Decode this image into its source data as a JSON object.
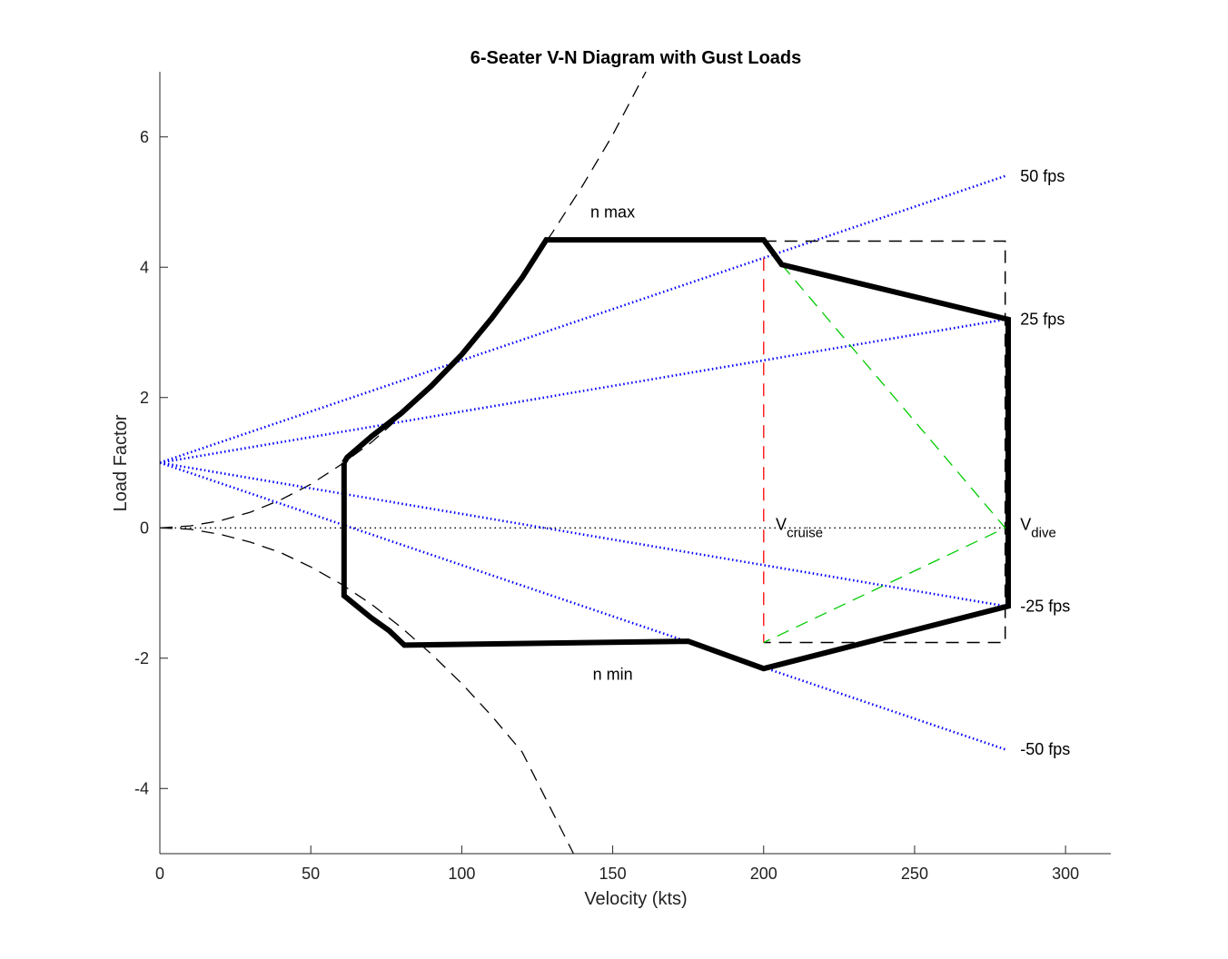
{
  "chart_data": {
    "type": "line",
    "title": "6-Seater V-N Diagram with Gust Loads",
    "xlabel": "Velocity (kts)",
    "ylabel": "Load Factor",
    "xlim": [
      0,
      315
    ],
    "ylim": [
      -5,
      7
    ],
    "xticks": [
      0,
      50,
      100,
      150,
      200,
      250,
      300
    ],
    "yticks": [
      -4,
      -2,
      0,
      2,
      4,
      6
    ],
    "grid": false,
    "series": [
      {
        "kind": "envelope",
        "color": "#000000",
        "x": [
          61,
          62,
          70,
          80,
          90,
          100,
          110,
          120,
          128,
          200,
          206,
          281,
          281,
          281,
          200,
          175,
          81,
          76,
          70,
          61,
          61
        ],
        "y": [
          1.0,
          1.08,
          1.4,
          1.76,
          2.18,
          2.66,
          3.22,
          3.84,
          4.42,
          4.42,
          4.04,
          3.2,
          0,
          -1.2,
          -2.16,
          -1.74,
          -1.8,
          -1.58,
          -1.38,
          -1.04,
          1.0
        ]
      },
      {
        "kind": "stall-curve-positive",
        "color": "#000000",
        "x": [
          0,
          10,
          20,
          30,
          40,
          50,
          60,
          70,
          80,
          90,
          100,
          110,
          120,
          130,
          140,
          150,
          161
        ],
        "y": [
          0,
          0.03,
          0.11,
          0.24,
          0.43,
          0.67,
          0.97,
          1.31,
          1.72,
          2.17,
          2.68,
          3.24,
          3.86,
          4.53,
          5.25,
          6.03,
          7.0
        ]
      },
      {
        "kind": "stall-curve-negative",
        "color": "#000000",
        "x": [
          0,
          10,
          20,
          30,
          40,
          50,
          60,
          70,
          80,
          90,
          100,
          110,
          120,
          137
        ],
        "y": [
          0,
          -0.02,
          -0.1,
          -0.22,
          -0.38,
          -0.6,
          -0.86,
          -1.17,
          -1.53,
          -1.94,
          -2.39,
          -2.89,
          -3.44,
          -5.0
        ]
      },
      {
        "kind": "gust",
        "label": "50 fps",
        "color": "#0000ff",
        "x": [
          0,
          280
        ],
        "y": [
          1.0,
          5.4
        ]
      },
      {
        "kind": "gust",
        "label": "25 fps",
        "color": "#0000ff",
        "x": [
          0,
          280
        ],
        "y": [
          1.0,
          3.2
        ]
      },
      {
        "kind": "gust",
        "label": "-25 fps",
        "color": "#0000ff",
        "x": [
          0,
          280
        ],
        "y": [
          1.0,
          -1.2
        ]
      },
      {
        "kind": "gust",
        "label": "-50 fps",
        "color": "#0000ff",
        "x": [
          0,
          280
        ],
        "y": [
          1.0,
          -3.4
        ]
      },
      {
        "kind": "gust-box",
        "color": "#000000",
        "x": [
          200,
          280,
          280,
          200
        ],
        "y": [
          4.4,
          4.4,
          -1.76,
          -1.76
        ]
      },
      {
        "kind": "cruise-line",
        "color": "#ff0000",
        "x": [
          200,
          200
        ],
        "y": [
          4.14,
          -1.76
        ]
      },
      {
        "kind": "dive-lines",
        "color": "#00cc00",
        "x": [
          206,
          280,
          200
        ],
        "y": [
          4.04,
          0,
          -1.76
        ]
      },
      {
        "kind": "zero-line",
        "color": "#000000",
        "x": [
          0,
          280
        ],
        "y": [
          0,
          0
        ]
      }
    ],
    "annotations": [
      {
        "text": "n max",
        "x": 150,
        "y": 4.85
      },
      {
        "text": "n min",
        "x": 150,
        "y": -2.25
      },
      {
        "text": "50 fps",
        "x": 285,
        "y": 5.4
      },
      {
        "text": "25 fps",
        "x": 285,
        "y": 3.2
      },
      {
        "text": "-25 fps",
        "x": 285,
        "y": -1.2
      },
      {
        "text": "-50 fps",
        "x": 285,
        "y": -3.4
      }
    ],
    "vcruise": {
      "main": "V",
      "sub": "cruise",
      "x": 204,
      "y": 0
    },
    "vdive": {
      "main": "V",
      "sub": "dive",
      "x": 285,
      "y": 0
    }
  }
}
